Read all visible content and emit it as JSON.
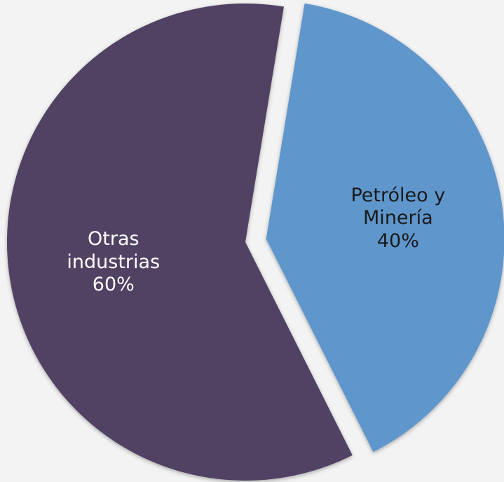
{
  "chart_data": {
    "type": "pie",
    "categories": [
      "Petróleo y Minería",
      "Otras industrias"
    ],
    "values": [
      40,
      60
    ],
    "value_labels": [
      "40%",
      "60%"
    ],
    "colors": [
      "#5f97cc",
      "#514263"
    ],
    "label_colors": [
      "#1a1a1a",
      "#ffffff"
    ],
    "exploded": [
      true,
      false
    ]
  }
}
